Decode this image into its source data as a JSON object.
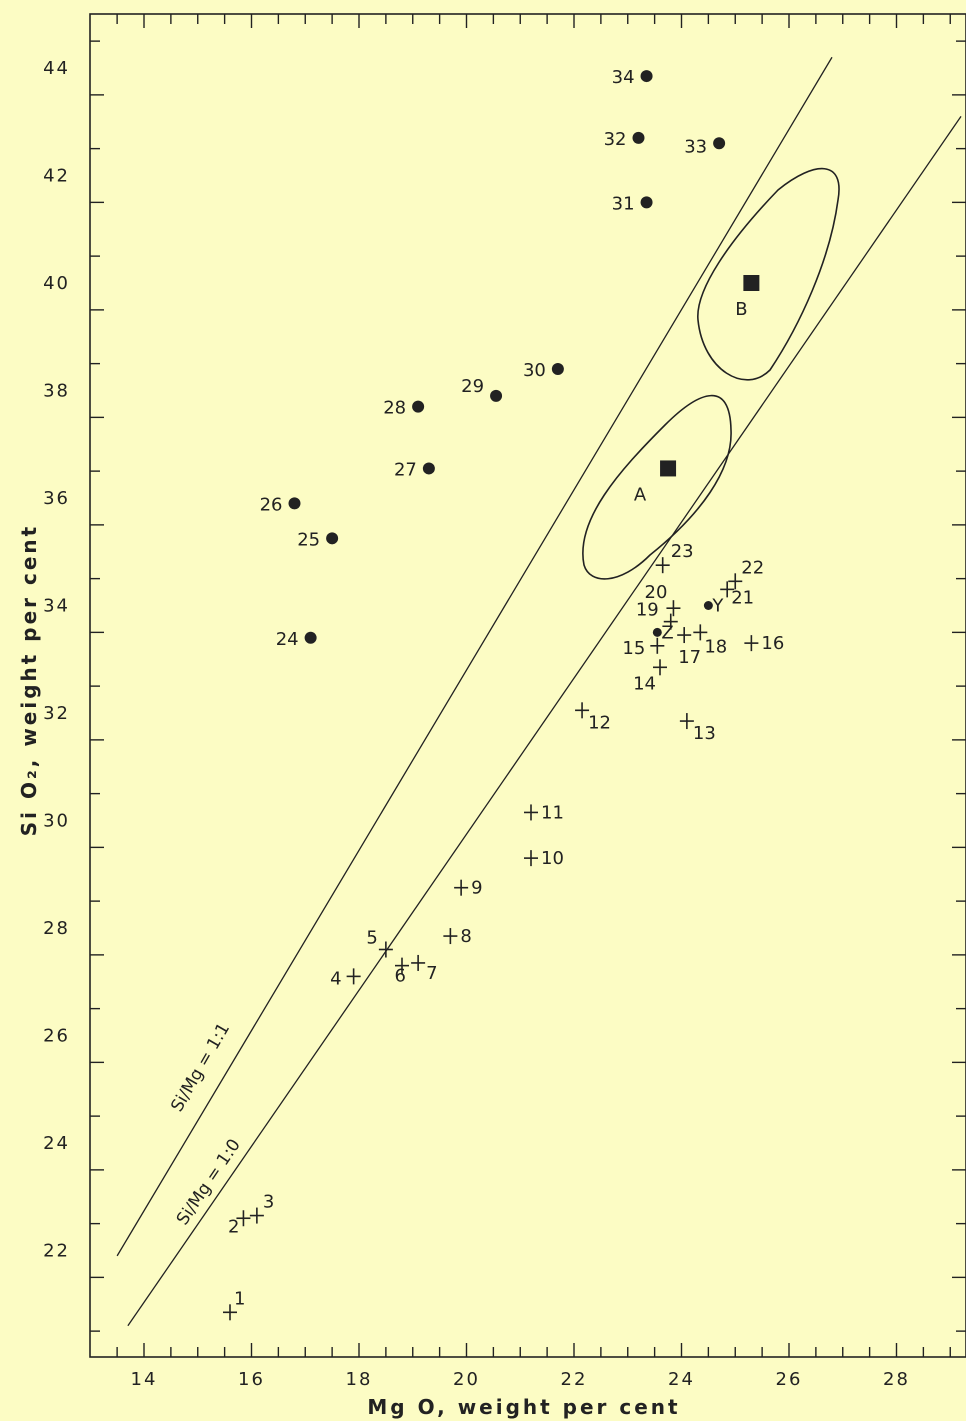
{
  "chart_data": {
    "type": "scatter",
    "xlabel": "Mg O, weight per cent",
    "ylabel": "Si O₂, weight per cent",
    "xlim": [
      13.2,
      29.2
    ],
    "ylim": [
      20.2,
      45.0
    ],
    "x_ticks": [
      14,
      16,
      18,
      20,
      22,
      24,
      26,
      28
    ],
    "y_ticks": [
      22,
      24,
      26,
      28,
      30,
      32,
      34,
      36,
      38,
      40,
      42,
      44
    ],
    "grid": false,
    "reference_lines": [
      {
        "label": "Si/Mg = 1:1",
        "points": [
          [
            13.5,
            21.9
          ],
          [
            26.8,
            44.2
          ]
        ]
      },
      {
        "label": "Si/Mg = 1:0",
        "points": [
          [
            13.7,
            20.6
          ],
          [
            29.2,
            43.1
          ]
        ]
      }
    ],
    "fields": [
      {
        "label": "A",
        "center": [
          23.75,
          36.55
        ]
      },
      {
        "label": "B",
        "center": [
          25.3,
          40.0
        ]
      }
    ],
    "series": [
      {
        "marker": "cross",
        "points": [
          {
            "label": "1",
            "x": 15.6,
            "y": 20.85
          },
          {
            "label": "2",
            "x": 15.85,
            "y": 22.6
          },
          {
            "label": "3",
            "x": 16.1,
            "y": 22.65
          },
          {
            "label": "4",
            "x": 17.9,
            "y": 27.1
          },
          {
            "label": "5",
            "x": 18.5,
            "y": 27.6
          },
          {
            "label": "6",
            "x": 18.8,
            "y": 27.3
          },
          {
            "label": "7",
            "x": 19.1,
            "y": 27.35
          },
          {
            "label": "8",
            "x": 19.7,
            "y": 27.85
          },
          {
            "label": "9",
            "x": 19.9,
            "y": 28.75
          },
          {
            "label": "10",
            "x": 21.2,
            "y": 29.3
          },
          {
            "label": "11",
            "x": 21.2,
            "y": 30.15
          },
          {
            "label": "12",
            "x": 22.15,
            "y": 32.05
          },
          {
            "label": "13",
            "x": 24.1,
            "y": 31.85
          },
          {
            "label": "14",
            "x": 23.6,
            "y": 32.85
          },
          {
            "label": "15",
            "x": 23.55,
            "y": 33.25
          },
          {
            "label": "16",
            "x": 25.3,
            "y": 33.3
          },
          {
            "label": "17",
            "x": 24.05,
            "y": 33.45
          },
          {
            "label": "18",
            "x": 24.35,
            "y": 33.5
          },
          {
            "label": "19",
            "x": 23.8,
            "y": 33.7
          },
          {
            "label": "20",
            "x": 23.85,
            "y": 33.95
          },
          {
            "label": "21",
            "x": 24.85,
            "y": 34.3
          },
          {
            "label": "22",
            "x": 25.0,
            "y": 34.45
          },
          {
            "label": "23",
            "x": 23.65,
            "y": 34.75
          }
        ]
      },
      {
        "marker": "dot",
        "points": [
          {
            "label": "24",
            "x": 17.1,
            "y": 33.4
          },
          {
            "label": "25",
            "x": 17.5,
            "y": 35.25
          },
          {
            "label": "26",
            "x": 16.8,
            "y": 35.9
          },
          {
            "label": "27",
            "x": 19.3,
            "y": 36.55
          },
          {
            "label": "28",
            "x": 19.1,
            "y": 37.7
          },
          {
            "label": "29",
            "x": 20.55,
            "y": 37.9
          },
          {
            "label": "30",
            "x": 21.7,
            "y": 38.4
          },
          {
            "label": "31",
            "x": 23.35,
            "y": 41.5
          },
          {
            "label": "32",
            "x": 23.2,
            "y": 42.7
          },
          {
            "label": "33",
            "x": 24.7,
            "y": 42.6
          },
          {
            "label": "34",
            "x": 23.35,
            "y": 43.85
          },
          {
            "label": "Y",
            "x": 24.5,
            "y": 34.0
          },
          {
            "label": "Z",
            "x": 23.55,
            "y": 33.5
          }
        ]
      },
      {
        "marker": "square",
        "points": [
          {
            "label": "",
            "x": 23.75,
            "y": 36.55
          },
          {
            "label": "",
            "x": 25.3,
            "y": 40.0
          }
        ]
      }
    ]
  }
}
